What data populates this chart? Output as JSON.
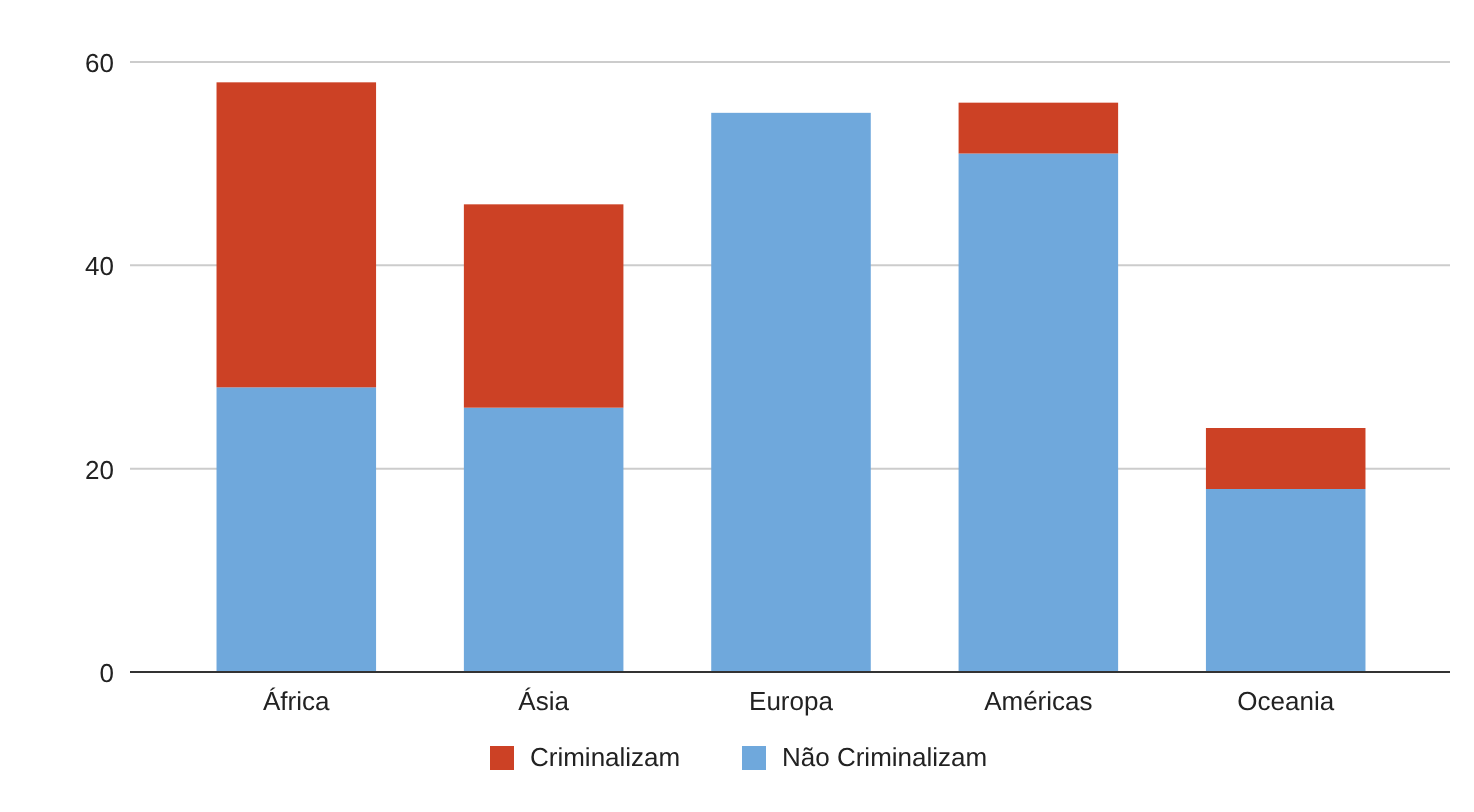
{
  "chart_data": {
    "type": "bar",
    "stacked": true,
    "categories": [
      "África",
      "Ásia",
      "Europa",
      "Américas",
      "Oceania"
    ],
    "series": [
      {
        "name": "Não Criminalizam",
        "color": "#6fa8dc",
        "values": [
          28,
          26,
          55,
          51,
          18
        ]
      },
      {
        "name": "Criminalizam",
        "color": "#cc4125",
        "values": [
          30,
          20,
          0,
          5,
          6
        ]
      }
    ],
    "ylim": [
      0,
      60
    ],
    "yticks": [
      0,
      20,
      40,
      60
    ],
    "grid": "y",
    "legend": "bottom"
  }
}
